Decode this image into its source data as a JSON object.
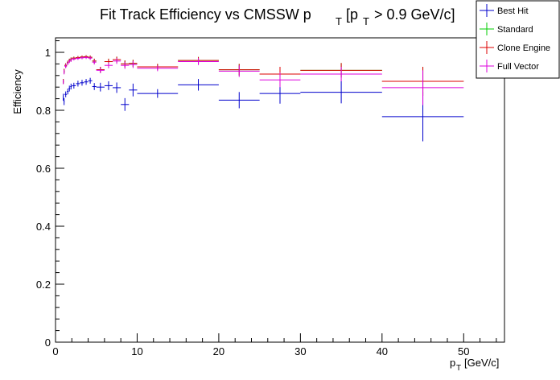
{
  "chart_data": {
    "type": "scatter",
    "style": "error-bars",
    "title": {
      "main": "Fit Track Efficiency vs CMSSW p",
      "main_sub": "T",
      "cut_pre": "[p",
      "cut_sub": "T",
      "cut_post": " > 0.9 GeV/c]"
    },
    "xlabel": {
      "main": "p",
      "sub": "T",
      "unit": "[GeV/c]"
    },
    "ylabel": "Efficiency",
    "xlim": [
      0,
      55
    ],
    "ylim": [
      0,
      1.05
    ],
    "xticks": [
      0,
      10,
      20,
      30,
      40,
      50
    ],
    "yticks": [
      0,
      0.2,
      0.4,
      0.6,
      0.8,
      1
    ],
    "xtick_labels": [
      "0",
      "10",
      "20",
      "30",
      "40",
      "50"
    ],
    "ytick_labels": [
      "0",
      "0.2",
      "0.4",
      "0.6",
      "0.8",
      "1"
    ],
    "legend": {
      "position": "top-right",
      "entries": [
        "Best Hit",
        "Standard",
        "Clone Engine",
        "Full Vector"
      ]
    },
    "series": [
      {
        "name": "Best Hit",
        "color": "#0000cc",
        "points": [
          {
            "x": 0.95,
            "y": 0.845,
            "xerr": 0.05,
            "yerr": 0.012
          },
          {
            "x": 1.05,
            "y": 0.83,
            "xerr": 0.05,
            "yerr": 0.012
          },
          {
            "x": 1.25,
            "y": 0.855,
            "xerr": 0.15,
            "yerr": 0.01
          },
          {
            "x": 1.5,
            "y": 0.865,
            "xerr": 0.1,
            "yerr": 0.01
          },
          {
            "x": 1.7,
            "y": 0.875,
            "xerr": 0.1,
            "yerr": 0.01
          },
          {
            "x": 1.9,
            "y": 0.882,
            "xerr": 0.1,
            "yerr": 0.01
          },
          {
            "x": 2.25,
            "y": 0.885,
            "xerr": 0.25,
            "yerr": 0.01
          },
          {
            "x": 2.75,
            "y": 0.892,
            "xerr": 0.25,
            "yerr": 0.01
          },
          {
            "x": 3.25,
            "y": 0.895,
            "xerr": 0.25,
            "yerr": 0.01
          },
          {
            "x": 3.75,
            "y": 0.898,
            "xerr": 0.25,
            "yerr": 0.01
          },
          {
            "x": 4.25,
            "y": 0.902,
            "xerr": 0.25,
            "yerr": 0.01
          },
          {
            "x": 4.75,
            "y": 0.882,
            "xerr": 0.25,
            "yerr": 0.012
          },
          {
            "x": 5.5,
            "y": 0.88,
            "xerr": 0.5,
            "yerr": 0.015
          },
          {
            "x": 6.5,
            "y": 0.885,
            "xerr": 0.5,
            "yerr": 0.015
          },
          {
            "x": 7.5,
            "y": 0.878,
            "xerr": 0.5,
            "yerr": 0.018
          },
          {
            "x": 8.5,
            "y": 0.82,
            "xerr": 0.5,
            "yerr": 0.022
          },
          {
            "x": 9.5,
            "y": 0.87,
            "xerr": 0.5,
            "yerr": 0.022
          },
          {
            "x": 12.5,
            "y": 0.858,
            "xerr": 2.5,
            "yerr": 0.015
          },
          {
            "x": 17.5,
            "y": 0.888,
            "xerr": 2.5,
            "yerr": 0.02
          },
          {
            "x": 22.5,
            "y": 0.835,
            "xerr": 2.5,
            "yerr": 0.028
          },
          {
            "x": 27.5,
            "y": 0.858,
            "xerr": 2.5,
            "yerr": 0.035
          },
          {
            "x": 35,
            "y": 0.862,
            "xerr": 5,
            "yerr": 0.038
          },
          {
            "x": 45,
            "y": 0.778,
            "xerr": 5,
            "yerr": 0.085
          }
        ]
      },
      {
        "name": "Standard",
        "color": "#00cc00",
        "points": [
          {
            "x": 0.95,
            "y": 0.9,
            "xerr": 0.05,
            "yerr": 0.008
          },
          {
            "x": 1.05,
            "y": 0.935,
            "xerr": 0.05,
            "yerr": 0.008
          },
          {
            "x": 1.25,
            "y": 0.955,
            "xerr": 0.15,
            "yerr": 0.007
          },
          {
            "x": 1.5,
            "y": 0.965,
            "xerr": 0.1,
            "yerr": 0.006
          },
          {
            "x": 1.7,
            "y": 0.972,
            "xerr": 0.1,
            "yerr": 0.006
          },
          {
            "x": 1.9,
            "y": 0.976,
            "xerr": 0.1,
            "yerr": 0.006
          },
          {
            "x": 2.25,
            "y": 0.98,
            "xerr": 0.25,
            "yerr": 0.005
          },
          {
            "x": 2.75,
            "y": 0.982,
            "xerr": 0.25,
            "yerr": 0.005
          },
          {
            "x": 3.25,
            "y": 0.984,
            "xerr": 0.25,
            "yerr": 0.005
          },
          {
            "x": 3.75,
            "y": 0.985,
            "xerr": 0.25,
            "yerr": 0.005
          },
          {
            "x": 4.25,
            "y": 0.983,
            "xerr": 0.25,
            "yerr": 0.006
          },
          {
            "x": 4.75,
            "y": 0.97,
            "xerr": 0.25,
            "yerr": 0.008
          },
          {
            "x": 5.5,
            "y": 0.94,
            "xerr": 0.5,
            "yerr": 0.01
          },
          {
            "x": 6.5,
            "y": 0.968,
            "xerr": 0.5,
            "yerr": 0.01
          },
          {
            "x": 7.5,
            "y": 0.975,
            "xerr": 0.5,
            "yerr": 0.01
          },
          {
            "x": 8.5,
            "y": 0.96,
            "xerr": 0.5,
            "yerr": 0.012
          },
          {
            "x": 9.5,
            "y": 0.962,
            "xerr": 0.5,
            "yerr": 0.012
          },
          {
            "x": 12.5,
            "y": 0.95,
            "xerr": 2.5,
            "yerr": 0.01
          },
          {
            "x": 17.5,
            "y": 0.972,
            "xerr": 2.5,
            "yerr": 0.012
          },
          {
            "x": 22.5,
            "y": 0.94,
            "xerr": 2.5,
            "yerr": 0.02
          },
          {
            "x": 27.5,
            "y": 0.925,
            "xerr": 2.5,
            "yerr": 0.025
          },
          {
            "x": 35,
            "y": 0.938,
            "xerr": 5,
            "yerr": 0.025
          },
          {
            "x": 45,
            "y": 0.9,
            "xerr": 5,
            "yerr": 0.05
          }
        ]
      },
      {
        "name": "Clone Engine",
        "color": "#dd0000",
        "points": [
          {
            "x": 0.95,
            "y": 0.9,
            "xerr": 0.05,
            "yerr": 0.008
          },
          {
            "x": 1.05,
            "y": 0.935,
            "xerr": 0.05,
            "yerr": 0.008
          },
          {
            "x": 1.25,
            "y": 0.955,
            "xerr": 0.15,
            "yerr": 0.007
          },
          {
            "x": 1.5,
            "y": 0.965,
            "xerr": 0.1,
            "yerr": 0.006
          },
          {
            "x": 1.7,
            "y": 0.972,
            "xerr": 0.1,
            "yerr": 0.006
          },
          {
            "x": 1.9,
            "y": 0.976,
            "xerr": 0.1,
            "yerr": 0.006
          },
          {
            "x": 2.25,
            "y": 0.98,
            "xerr": 0.25,
            "yerr": 0.005
          },
          {
            "x": 2.75,
            "y": 0.982,
            "xerr": 0.25,
            "yerr": 0.005
          },
          {
            "x": 3.25,
            "y": 0.984,
            "xerr": 0.25,
            "yerr": 0.005
          },
          {
            "x": 3.75,
            "y": 0.985,
            "xerr": 0.25,
            "yerr": 0.005
          },
          {
            "x": 4.25,
            "y": 0.983,
            "xerr": 0.25,
            "yerr": 0.006
          },
          {
            "x": 4.75,
            "y": 0.97,
            "xerr": 0.25,
            "yerr": 0.008
          },
          {
            "x": 5.5,
            "y": 0.94,
            "xerr": 0.5,
            "yerr": 0.01
          },
          {
            "x": 6.5,
            "y": 0.968,
            "xerr": 0.5,
            "yerr": 0.01
          },
          {
            "x": 7.5,
            "y": 0.975,
            "xerr": 0.5,
            "yerr": 0.01
          },
          {
            "x": 8.5,
            "y": 0.96,
            "xerr": 0.5,
            "yerr": 0.012
          },
          {
            "x": 9.5,
            "y": 0.962,
            "xerr": 0.5,
            "yerr": 0.012
          },
          {
            "x": 12.5,
            "y": 0.95,
            "xerr": 2.5,
            "yerr": 0.01
          },
          {
            "x": 17.5,
            "y": 0.972,
            "xerr": 2.5,
            "yerr": 0.012
          },
          {
            "x": 22.5,
            "y": 0.94,
            "xerr": 2.5,
            "yerr": 0.02
          },
          {
            "x": 27.5,
            "y": 0.925,
            "xerr": 2.5,
            "yerr": 0.025
          },
          {
            "x": 35,
            "y": 0.938,
            "xerr": 5,
            "yerr": 0.025
          },
          {
            "x": 45,
            "y": 0.9,
            "xerr": 5,
            "yerr": 0.05
          }
        ]
      },
      {
        "name": "Full Vector",
        "color": "#dd00dd",
        "points": [
          {
            "x": 0.95,
            "y": 0.898,
            "xerr": 0.05,
            "yerr": 0.008
          },
          {
            "x": 1.05,
            "y": 0.932,
            "xerr": 0.05,
            "yerr": 0.008
          },
          {
            "x": 1.25,
            "y": 0.952,
            "xerr": 0.15,
            "yerr": 0.007
          },
          {
            "x": 1.5,
            "y": 0.962,
            "xerr": 0.1,
            "yerr": 0.006
          },
          {
            "x": 1.7,
            "y": 0.969,
            "xerr": 0.1,
            "yerr": 0.006
          },
          {
            "x": 1.9,
            "y": 0.973,
            "xerr": 0.1,
            "yerr": 0.006
          },
          {
            "x": 2.25,
            "y": 0.977,
            "xerr": 0.25,
            "yerr": 0.005
          },
          {
            "x": 2.75,
            "y": 0.979,
            "xerr": 0.25,
            "yerr": 0.005
          },
          {
            "x": 3.25,
            "y": 0.981,
            "xerr": 0.25,
            "yerr": 0.005
          },
          {
            "x": 3.75,
            "y": 0.982,
            "xerr": 0.25,
            "yerr": 0.005
          },
          {
            "x": 4.25,
            "y": 0.98,
            "xerr": 0.25,
            "yerr": 0.006
          },
          {
            "x": 4.75,
            "y": 0.966,
            "xerr": 0.25,
            "yerr": 0.008
          },
          {
            "x": 5.5,
            "y": 0.938,
            "xerr": 0.5,
            "yerr": 0.01
          },
          {
            "x": 6.5,
            "y": 0.955,
            "xerr": 0.5,
            "yerr": 0.01
          },
          {
            "x": 7.5,
            "y": 0.97,
            "xerr": 0.5,
            "yerr": 0.01
          },
          {
            "x": 8.5,
            "y": 0.955,
            "xerr": 0.5,
            "yerr": 0.012
          },
          {
            "x": 9.5,
            "y": 0.958,
            "xerr": 0.5,
            "yerr": 0.012
          },
          {
            "x": 12.5,
            "y": 0.945,
            "xerr": 2.5,
            "yerr": 0.01
          },
          {
            "x": 17.5,
            "y": 0.968,
            "xerr": 2.5,
            "yerr": 0.012
          },
          {
            "x": 22.5,
            "y": 0.935,
            "xerr": 2.5,
            "yerr": 0.02
          },
          {
            "x": 27.5,
            "y": 0.905,
            "xerr": 2.5,
            "yerr": 0.025
          },
          {
            "x": 35,
            "y": 0.925,
            "xerr": 5,
            "yerr": 0.025
          },
          {
            "x": 45,
            "y": 0.878,
            "xerr": 5,
            "yerr": 0.06
          }
        ]
      }
    ]
  }
}
